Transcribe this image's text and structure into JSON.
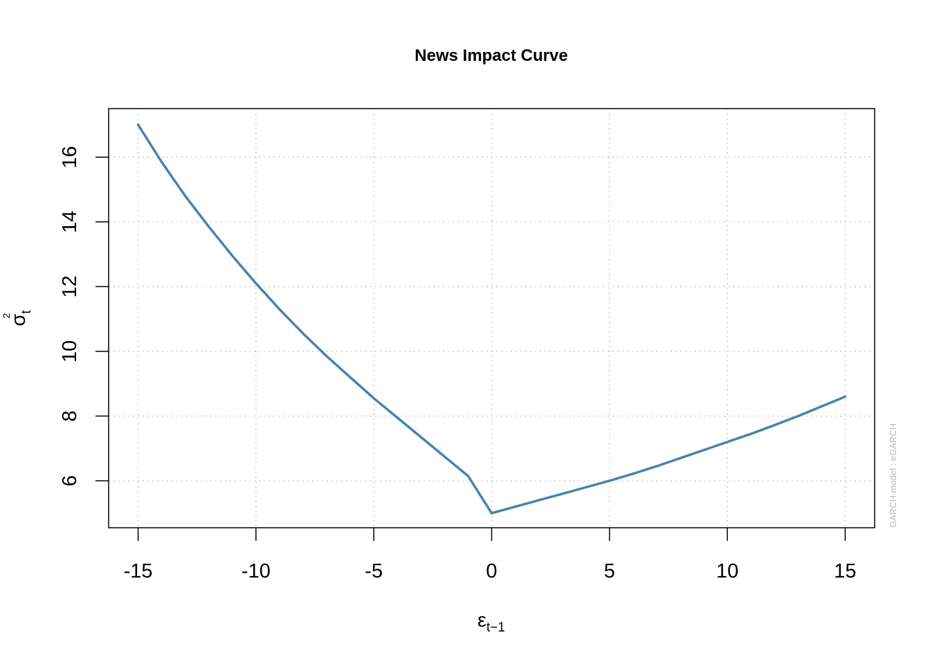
{
  "chart_data": {
    "type": "line",
    "title": "News Impact Curve",
    "xlabel": {
      "main": "ε",
      "sub": "t−1"
    },
    "ylabel": {
      "main": "σ",
      "sub": "t",
      "sup": "2"
    },
    "xlim": [
      -16.25,
      16.25
    ],
    "ylim": [
      4.55,
      17.5
    ],
    "xticks": [
      -15,
      -10,
      -5,
      0,
      5,
      10,
      15
    ],
    "xtick_labels": [
      "-15",
      "-10",
      "-5",
      "0",
      "5",
      "10",
      "15"
    ],
    "yticks": [
      6,
      8,
      10,
      12,
      14,
      16
    ],
    "ytick_labels": [
      "6",
      "8",
      "10",
      "12",
      "14",
      "16"
    ],
    "grid": true,
    "line_color": "#4682B4",
    "series": [
      {
        "x": [
          -15,
          -14,
          -13,
          -12,
          -11,
          -10,
          -9,
          -8,
          -7,
          -6,
          -5,
          -4,
          -3,
          -2,
          -1,
          0,
          1,
          2,
          3,
          4,
          5,
          6,
          7,
          8,
          9,
          10,
          11,
          12,
          13,
          14,
          15
        ],
        "y": [
          17.0,
          15.85,
          14.8,
          13.85,
          12.95,
          12.1,
          11.3,
          10.55,
          9.85,
          9.2,
          8.55,
          7.95,
          7.35,
          6.75,
          6.15,
          5.0,
          5.2,
          5.4,
          5.6,
          5.8,
          6.0,
          6.22,
          6.45,
          6.7,
          6.95,
          7.2,
          7.45,
          7.72,
          8.0,
          8.3,
          8.6
        ]
      }
    ],
    "watermark": "GARCH model :  eGARCH"
  }
}
